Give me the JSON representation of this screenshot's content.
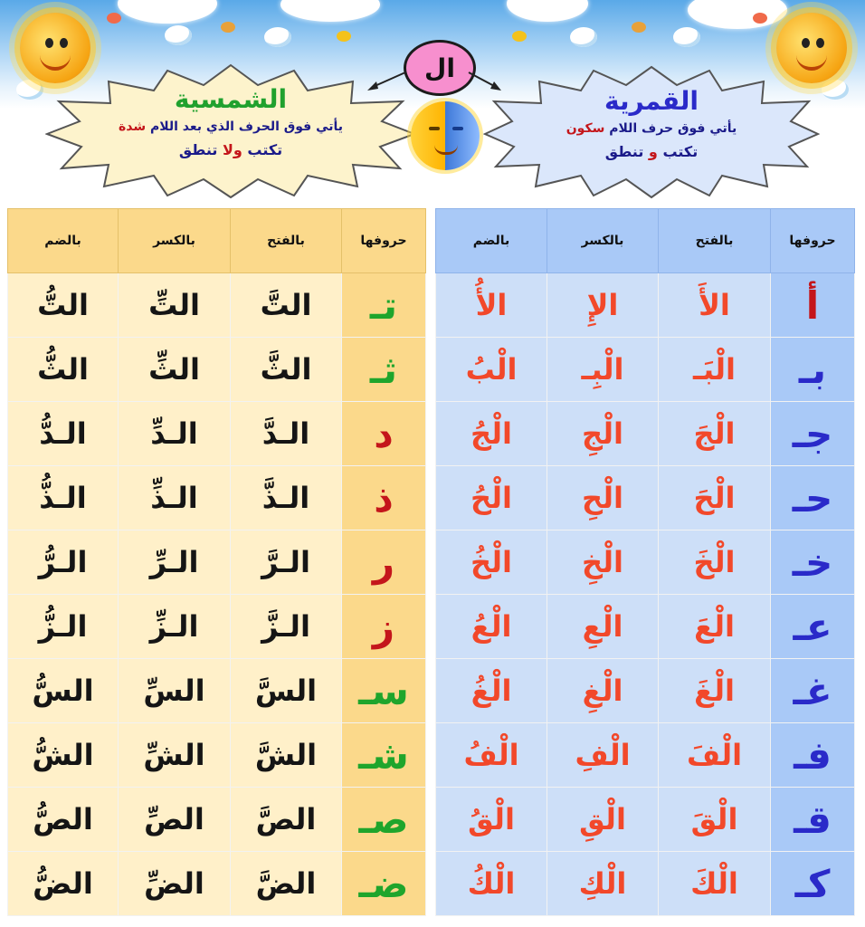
{
  "header": {
    "al": "ال",
    "shamsiya": {
      "title": "الشمسية",
      "rule_main": "يأتي فوق الحرف الذي بعد اللام",
      "rule_mark": "شدة",
      "write_part1": "تكتب",
      "write_conj": "ولا",
      "write_part2": "تنطق"
    },
    "qamariya": {
      "title": "القمرية",
      "rule_main": "يأتي فوق حرف اللام",
      "rule_mark": "سكون",
      "write_part1": "تكتب",
      "write_conj": "و",
      "write_part2": "تنطق"
    }
  },
  "sun_table": {
    "headers": [
      "بالضم",
      "بالكسر",
      "بالفتح",
      "حروفها"
    ],
    "rows": [
      {
        "damma": "التُّ",
        "kasra": "التِّ",
        "fatha": "التَّ",
        "letter": "تـ",
        "lc": "grn"
      },
      {
        "damma": "الثُّ",
        "kasra": "الثِّ",
        "fatha": "الثَّ",
        "letter": "ثـ",
        "lc": "grn"
      },
      {
        "damma": "الـدُّ",
        "kasra": "الـدِّ",
        "fatha": "الـدَّ",
        "letter": "د",
        "lc": "red"
      },
      {
        "damma": "الـذُّ",
        "kasra": "الـذِّ",
        "fatha": "الـذَّ",
        "letter": "ذ",
        "lc": "red"
      },
      {
        "damma": "الـرُّ",
        "kasra": "الـرِّ",
        "fatha": "الـرَّ",
        "letter": "ر",
        "lc": "red"
      },
      {
        "damma": "الـزُّ",
        "kasra": "الـزِّ",
        "fatha": "الـزَّ",
        "letter": "ز",
        "lc": "red"
      },
      {
        "damma": "السُّ",
        "kasra": "السِّ",
        "fatha": "السَّ",
        "letter": "سـ",
        "lc": "grn"
      },
      {
        "damma": "الشُّ",
        "kasra": "الشِّ",
        "fatha": "الشَّ",
        "letter": "شـ",
        "lc": "grn"
      },
      {
        "damma": "الصُّ",
        "kasra": "الصِّ",
        "fatha": "الصَّ",
        "letter": "صـ",
        "lc": "grn"
      },
      {
        "damma": "الضُّ",
        "kasra": "الضِّ",
        "fatha": "الضَّ",
        "letter": "ضـ",
        "lc": "grn"
      }
    ]
  },
  "moon_table": {
    "headers": [
      "بالضم",
      "بالكسر",
      "بالفتح",
      "حروفها"
    ],
    "rows": [
      {
        "damma": "الأُ",
        "kasra": "الإِ",
        "fatha": "الأَ",
        "letter": "أ",
        "lc": "red"
      },
      {
        "damma": "الْبُ",
        "kasra": "الْبِـ",
        "fatha": "الْبَـ",
        "letter": "بـ",
        "lc": "blu"
      },
      {
        "damma": "الْجُ",
        "kasra": "الْجِ",
        "fatha": "الْجَ",
        "letter": "جـ",
        "lc": "blu"
      },
      {
        "damma": "الْحُ",
        "kasra": "الْحِ",
        "fatha": "الْحَ",
        "letter": "حـ",
        "lc": "blu"
      },
      {
        "damma": "الْخُ",
        "kasra": "الْخِ",
        "fatha": "الْخَ",
        "letter": "خـ",
        "lc": "blu"
      },
      {
        "damma": "الْعُ",
        "kasra": "الْعِ",
        "fatha": "الْعَ",
        "letter": "عـ",
        "lc": "blu"
      },
      {
        "damma": "الْغُ",
        "kasra": "الْغِ",
        "fatha": "الْغَ",
        "letter": "غـ",
        "lc": "blu"
      },
      {
        "damma": "الْفُ",
        "kasra": "الْفِ",
        "fatha": "الْفَ",
        "letter": "فـ",
        "lc": "blu"
      },
      {
        "damma": "الْقُ",
        "kasra": "الْقِ",
        "fatha": "الْقَ",
        "letter": "قـ",
        "lc": "blu"
      },
      {
        "damma": "الْكُ",
        "kasra": "الْكِ",
        "fatha": "الْكَ",
        "letter": "كـ",
        "lc": "blu"
      }
    ]
  },
  "colors": {
    "sun_header_bg": "#fbd98b",
    "sun_cell_bg": "#fff0c9",
    "moon_header_bg": "#a9c9f7",
    "moon_cell_bg": "#cddff8",
    "green": "#1fa52c",
    "red": "#c4161b",
    "blue": "#2a2ac9",
    "orange": "#f2482a"
  },
  "icons": [
    "sun-icon",
    "moon-icon",
    "bird-icon",
    "butterfly-icon",
    "bee-icon",
    "cloud-icon"
  ]
}
